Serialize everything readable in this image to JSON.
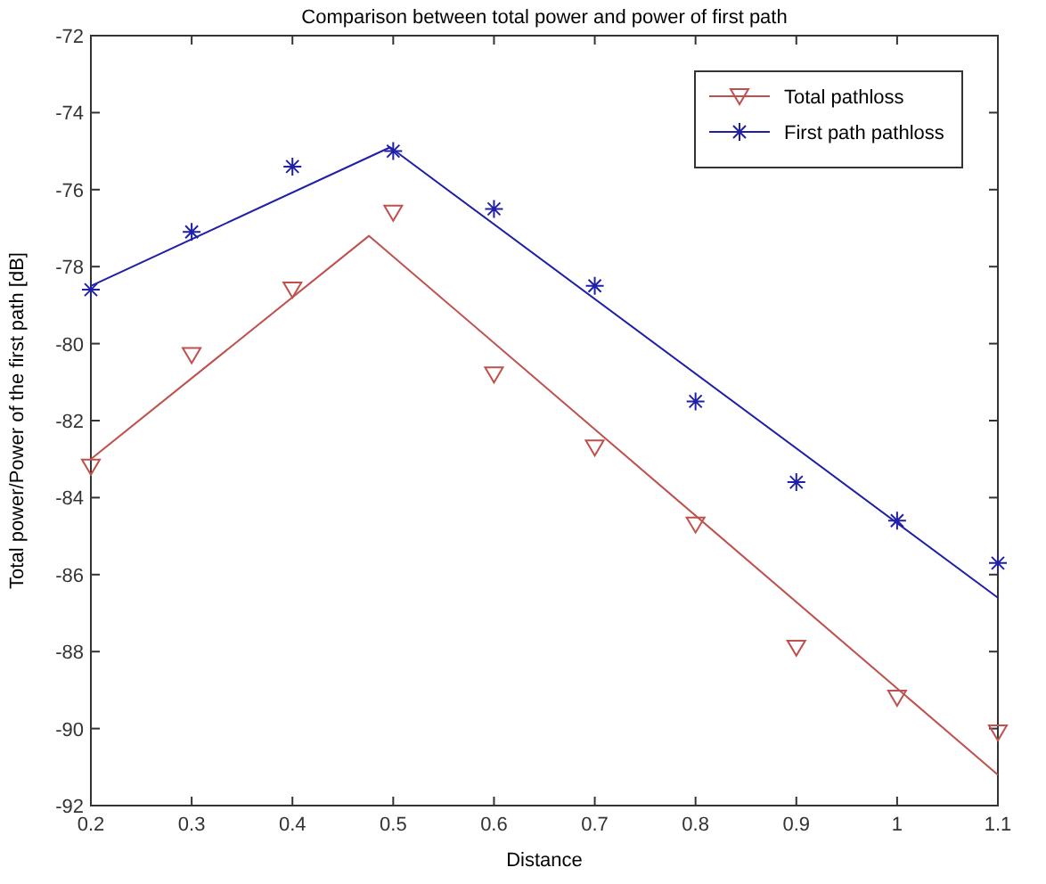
{
  "chart_data": {
    "type": "scatter",
    "title": "Comparison between total power and power of first path",
    "xlabel": "Distance",
    "ylabel": "Total power/Power of the first path [dB]",
    "x": [
      0.2,
      0.3,
      0.4,
      0.5,
      0.6,
      0.7,
      0.8,
      0.9,
      1.0,
      1.1
    ],
    "series": [
      {
        "name": "Total pathloss",
        "color": "#c0504d",
        "marker": "triangle",
        "values": [
          -83.2,
          -80.3,
          -78.6,
          -76.6,
          -80.8,
          -82.7,
          -84.7,
          -87.9,
          -89.2,
          -90.1
        ]
      },
      {
        "name": "First path pathloss",
        "color": "#1f1fa8",
        "marker": "cross",
        "values": [
          -78.6,
          -77.1,
          -75.4,
          -75.0,
          -76.5,
          -78.5,
          -81.5,
          -83.6,
          -84.6,
          -85.7
        ]
      },
      {
        "type": "line",
        "color": "#c0504d",
        "x": [
          0.2,
          0.476,
          1.1
        ],
        "values": [
          -83.0,
          -77.2,
          -91.2
        ]
      },
      {
        "type": "line",
        "color": "#1f1fa8",
        "x": [
          0.2,
          0.497,
          1.1
        ],
        "values": [
          -78.5,
          -74.9,
          -86.6
        ]
      }
    ],
    "xlim": [
      0.2,
      1.1
    ],
    "xticks": [
      0.2,
      0.3,
      0.4,
      0.5,
      0.6,
      0.7,
      0.8,
      0.9,
      1,
      1.1
    ],
    "ylim": [
      -92,
      -72
    ],
    "yticks": [
      -92,
      -90,
      -88,
      -86,
      -84,
      -82,
      -80,
      -78,
      -76,
      -74,
      -72
    ],
    "legend": "top right",
    "grid": false
  }
}
